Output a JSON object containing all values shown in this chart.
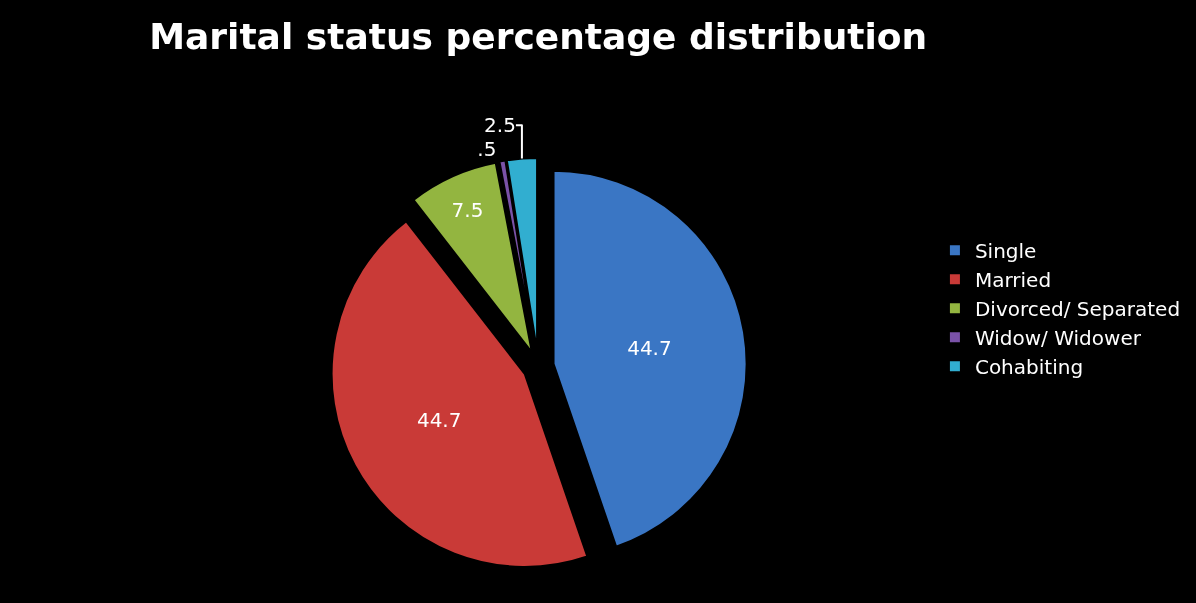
{
  "chart_data": {
    "type": "pie",
    "title": "Marital status percentage distribution",
    "categories": [
      "Single",
      "Married",
      "Divorced/ Separated",
      "Widow/ Widower",
      "Cohabiting"
    ],
    "values": [
      44.7,
      44.7,
      7.5,
      0.5,
      2.5
    ],
    "value_labels": [
      "44.7",
      "44.7",
      "7.5",
      ".5",
      "2.5"
    ],
    "colors": [
      "#3a76c4",
      "#c93a37",
      "#93b540",
      "#7a52a8",
      "#31aed0"
    ],
    "legend": "right"
  }
}
